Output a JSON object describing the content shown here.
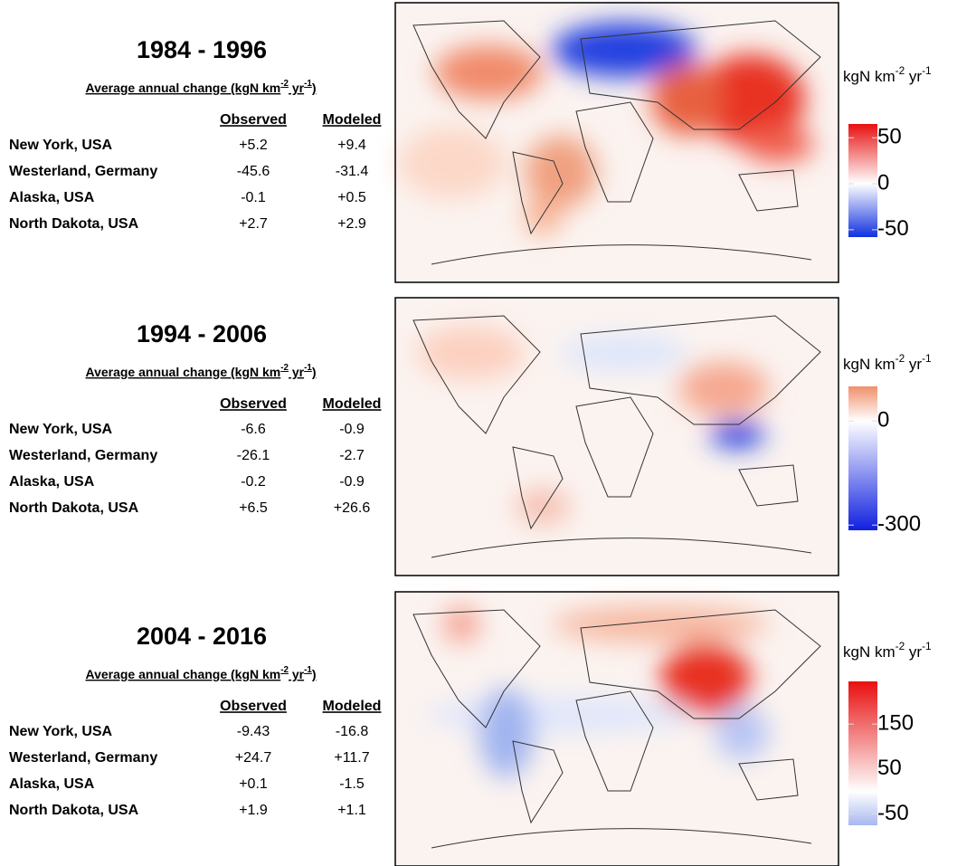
{
  "panels": [
    {
      "title": "1984 - 1996",
      "subtitle": [
        {
          "text": "Average annual change (kgN km"
        },
        {
          "text": "-2",
          "sup": true
        },
        {
          "text": " yr"
        },
        {
          "text": "-1",
          "sup": true
        },
        {
          "text": ")"
        }
      ],
      "columns": [
        "Observed",
        "Modeled"
      ],
      "rows": [
        [
          "New York, USA",
          "+5.2",
          "+9.4"
        ],
        [
          "Westerland, Germany",
          "-45.6",
          "-31.4"
        ],
        [
          "Alaska, USA",
          "-0.1",
          "+0.5"
        ],
        [
          "North Dakota, USA",
          "+2.7",
          "+2.9"
        ]
      ],
      "colorbar": {
        "unit": [
          {
            "text": "kgN km"
          },
          {
            "text": "-2",
            "sup": true
          },
          {
            "text": " yr"
          },
          {
            "text": "-1",
            "sup": true
          }
        ],
        "lim": [
          -58,
          65
        ],
        "ticks": [
          50,
          0,
          -50
        ],
        "colors": [
          "#1030e0",
          "#ffffff",
          "#e81010"
        ]
      }
    },
    {
      "title": "1994 - 2006",
      "subtitle": [
        {
          "text": "Average annual change (kgN km"
        },
        {
          "text": "-2",
          "sup": true
        },
        {
          "text": " yr"
        },
        {
          "text": "-1",
          "sup": true
        },
        {
          "text": ")"
        }
      ],
      "columns": [
        "Observed",
        "Modeled"
      ],
      "rows": [
        [
          "New York, USA",
          "-6.6",
          "-0.9"
        ],
        [
          "Westerland, Germany",
          "-26.1",
          "-2.7"
        ],
        [
          "Alaska, USA",
          "-0.2",
          "-0.9"
        ],
        [
          "North Dakota, USA",
          "+6.5",
          "+26.6"
        ]
      ],
      "colorbar": {
        "unit": [
          {
            "text": "kgN km"
          },
          {
            "text": "-2",
            "sup": true
          },
          {
            "text": " yr"
          },
          {
            "text": "-1",
            "sup": true
          }
        ],
        "lim": [
          -315,
          100
        ],
        "ticks": [
          0,
          -300
        ],
        "colors": [
          "#1020e0",
          "#ffffff",
          "#f0906a"
        ]
      }
    },
    {
      "title": "2004 - 2016",
      "subtitle": [
        {
          "text": "Average annual change (kgN km"
        },
        {
          "text": "-2",
          "sup": true
        },
        {
          "text": " yr"
        },
        {
          "text": "-1",
          "sup": true
        },
        {
          "text": ")"
        }
      ],
      "columns": [
        "Observed",
        "Modeled"
      ],
      "rows": [
        [
          "New York, USA",
          "-9.43",
          "-16.8"
        ],
        [
          "Westerland, Germany",
          "+24.7",
          "+11.7"
        ],
        [
          "Alaska, USA",
          "+0.1",
          "-1.5"
        ],
        [
          "North Dakota, USA",
          "+1.9",
          "+1.1"
        ]
      ],
      "colorbar": {
        "unit": [
          {
            "text": "kgN km"
          },
          {
            "text": "-2",
            "sup": true
          },
          {
            "text": " yr"
          },
          {
            "text": "-1",
            "sup": true
          }
        ],
        "lim": [
          -75,
          245
        ],
        "ticks": [
          150,
          50,
          -50
        ],
        "colors": [
          "#a8b8f0",
          "#ffffff",
          "#e81010"
        ]
      }
    }
  ]
}
